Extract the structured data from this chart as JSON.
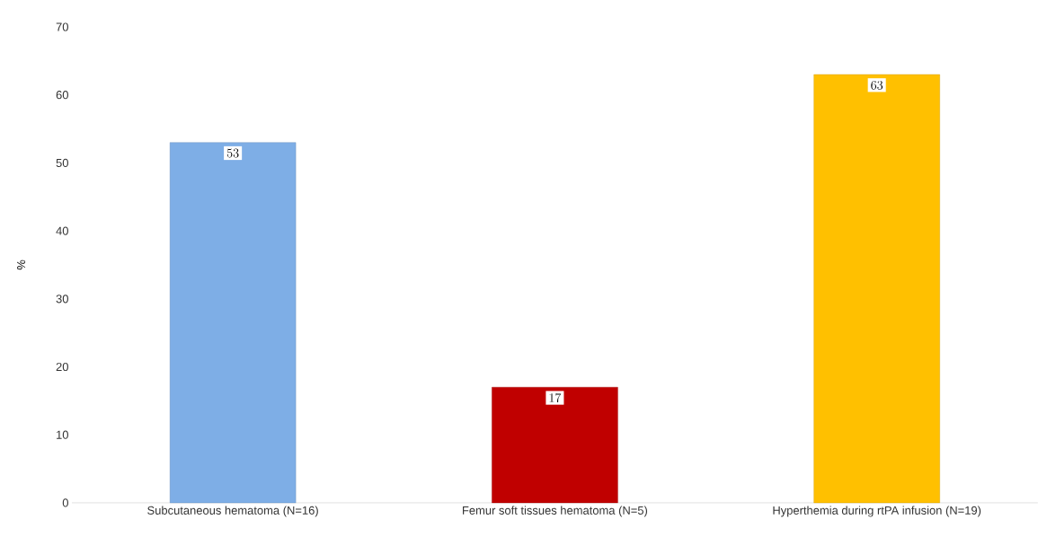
{
  "chart_data": {
    "type": "bar",
    "ylabel": "%",
    "categories": [
      "Subcutaneous hematoma (N=16)",
      "Femur soft tissues hematoma (N=5)",
      "Hyperthemia during rtPA infusion (N=19)"
    ],
    "values": [
      53,
      17,
      63
    ],
    "colors": [
      "#7eaee6",
      "#c00000",
      "#ffc000"
    ],
    "ylim": [
      0,
      70
    ],
    "yticks": [
      0,
      10,
      20,
      30,
      40,
      50,
      60,
      70
    ],
    "data_labels": true
  }
}
